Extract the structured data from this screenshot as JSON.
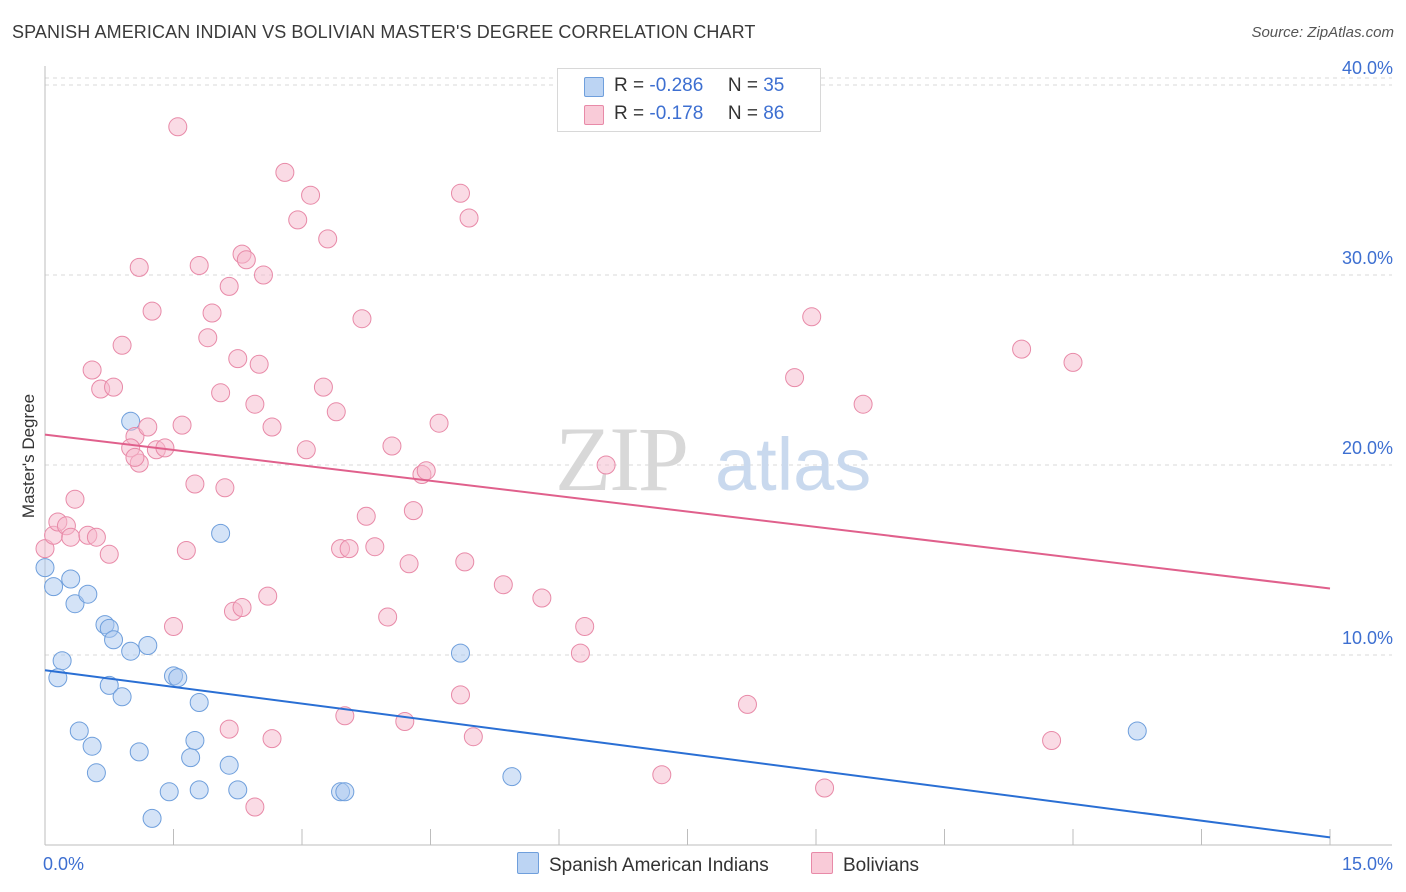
{
  "title": "SPANISH AMERICAN INDIAN VS BOLIVIAN MASTER'S DEGREE CORRELATION CHART",
  "source": "Source: ZipAtlas.com",
  "watermark": {
    "zip": "ZIP",
    "atlas": "atlas"
  },
  "legend": {
    "series1": {
      "r_label": "R =",
      "r_value": "-0.286",
      "n_label": "N =",
      "n_value": "35"
    },
    "series2": {
      "r_label": "R =",
      "r_value": "-0.178",
      "n_label": "N =",
      "n_value": "86"
    }
  },
  "bottom_legend": {
    "series1": "Spanish American Indians",
    "series2": "Bolivians"
  },
  "colors": {
    "blue_fill": "#a9c8f0",
    "blue_stroke": "#6f9fdc",
    "blue_line": "#2a6fd4",
    "pink_fill": "#f6b8cb",
    "pink_stroke": "#e88aa8",
    "pink_line": "#e0608c",
    "grid": "#d9d9d9",
    "tick_label": "#3d6fd1"
  },
  "chart_data": {
    "type": "scatter",
    "title": "SPANISH AMERICAN INDIAN VS BOLIVIAN MASTER'S DEGREE CORRELATION CHART",
    "xlabel": "",
    "ylabel": "Master's Degree",
    "xlim": [
      0,
      15
    ],
    "ylim": [
      0,
      41
    ],
    "x_tick_labels": [
      "0.0%",
      "15.0%"
    ],
    "y_ticks": [
      10,
      20,
      30,
      40
    ],
    "y_tick_labels": [
      "10.0%",
      "20.0%",
      "30.0%",
      "40.0%"
    ],
    "grid": true,
    "series": [
      {
        "name": "Spanish American Indians",
        "color": "blue",
        "trend": {
          "x": [
            0,
            15
          ],
          "y": [
            9.2,
            0.4
          ]
        },
        "points": [
          [
            0.0,
            14.6
          ],
          [
            0.1,
            13.6
          ],
          [
            0.3,
            14.0
          ],
          [
            0.35,
            12.7
          ],
          [
            0.5,
            13.2
          ],
          [
            0.2,
            9.7
          ],
          [
            0.15,
            8.8
          ],
          [
            0.7,
            11.6
          ],
          [
            0.75,
            11.4
          ],
          [
            0.8,
            10.8
          ],
          [
            0.75,
            8.4
          ],
          [
            0.9,
            7.8
          ],
          [
            1.0,
            10.2
          ],
          [
            1.2,
            10.5
          ],
          [
            1.5,
            8.9
          ],
          [
            1.55,
            8.8
          ],
          [
            1.8,
            7.5
          ],
          [
            1.0,
            22.3
          ],
          [
            2.05,
            16.4
          ],
          [
            0.4,
            6.0
          ],
          [
            0.55,
            5.2
          ],
          [
            0.6,
            3.8
          ],
          [
            1.1,
            4.9
          ],
          [
            1.7,
            4.6
          ],
          [
            1.75,
            5.5
          ],
          [
            2.15,
            4.2
          ],
          [
            1.45,
            2.8
          ],
          [
            1.8,
            2.9
          ],
          [
            2.25,
            2.9
          ],
          [
            1.25,
            1.4
          ],
          [
            3.45,
            2.8
          ],
          [
            3.5,
            2.8
          ],
          [
            4.85,
            10.1
          ],
          [
            5.45,
            3.6
          ],
          [
            12.75,
            6.0
          ]
        ]
      },
      {
        "name": "Bolivians",
        "color": "pink",
        "trend": {
          "x": [
            0,
            15
          ],
          "y": [
            21.6,
            13.5
          ]
        },
        "points": [
          [
            0.0,
            15.6
          ],
          [
            0.1,
            16.3
          ],
          [
            0.15,
            17.0
          ],
          [
            0.25,
            16.8
          ],
          [
            0.3,
            16.2
          ],
          [
            0.35,
            18.2
          ],
          [
            0.5,
            16.3
          ],
          [
            0.6,
            16.2
          ],
          [
            0.55,
            25.0
          ],
          [
            0.65,
            24.0
          ],
          [
            0.8,
            24.1
          ],
          [
            0.9,
            26.3
          ],
          [
            0.75,
            15.3
          ],
          [
            1.05,
            21.5
          ],
          [
            1.0,
            20.9
          ],
          [
            1.1,
            20.1
          ],
          [
            1.05,
            20.4
          ],
          [
            1.2,
            22.0
          ],
          [
            1.3,
            20.8
          ],
          [
            1.4,
            20.9
          ],
          [
            1.25,
            28.1
          ],
          [
            1.1,
            30.4
          ],
          [
            1.55,
            37.8
          ],
          [
            1.6,
            22.1
          ],
          [
            1.65,
            15.5
          ],
          [
            1.75,
            19.0
          ],
          [
            1.8,
            30.5
          ],
          [
            1.9,
            26.7
          ],
          [
            1.95,
            28.0
          ],
          [
            2.05,
            23.8
          ],
          [
            2.1,
            18.8
          ],
          [
            2.15,
            29.4
          ],
          [
            2.25,
            25.6
          ],
          [
            2.3,
            31.1
          ],
          [
            2.35,
            30.8
          ],
          [
            2.45,
            23.2
          ],
          [
            2.5,
            25.3
          ],
          [
            2.55,
            30.0
          ],
          [
            2.2,
            12.3
          ],
          [
            2.3,
            12.5
          ],
          [
            2.6,
            13.1
          ],
          [
            2.65,
            22.0
          ],
          [
            2.8,
            35.4
          ],
          [
            2.95,
            32.9
          ],
          [
            3.1,
            34.2
          ],
          [
            3.05,
            20.8
          ],
          [
            3.25,
            24.1
          ],
          [
            3.3,
            31.9
          ],
          [
            3.4,
            22.8
          ],
          [
            3.45,
            15.6
          ],
          [
            3.55,
            15.6
          ],
          [
            3.7,
            27.7
          ],
          [
            3.75,
            17.3
          ],
          [
            3.85,
            15.7
          ],
          [
            4.0,
            12.0
          ],
          [
            4.05,
            21.0
          ],
          [
            4.25,
            14.8
          ],
          [
            4.3,
            17.6
          ],
          [
            4.4,
            19.5
          ],
          [
            4.45,
            19.7
          ],
          [
            4.6,
            22.2
          ],
          [
            4.85,
            34.3
          ],
          [
            4.95,
            33.0
          ],
          [
            4.9,
            14.9
          ],
          [
            5.35,
            13.7
          ],
          [
            5.8,
            13.0
          ],
          [
            6.25,
            10.1
          ],
          [
            6.3,
            11.5
          ],
          [
            6.55,
            20.0
          ],
          [
            2.15,
            6.1
          ],
          [
            2.65,
            5.6
          ],
          [
            2.45,
            2.0
          ],
          [
            3.5,
            6.8
          ],
          [
            4.2,
            6.5
          ],
          [
            4.85,
            7.9
          ],
          [
            5.0,
            5.7
          ],
          [
            1.5,
            11.5
          ],
          [
            7.2,
            3.7
          ],
          [
            8.2,
            7.4
          ],
          [
            8.75,
            24.6
          ],
          [
            8.95,
            27.8
          ],
          [
            9.1,
            3.0
          ],
          [
            9.55,
            23.2
          ],
          [
            11.4,
            26.1
          ],
          [
            12.0,
            25.4
          ],
          [
            11.75,
            5.5
          ]
        ]
      }
    ]
  }
}
